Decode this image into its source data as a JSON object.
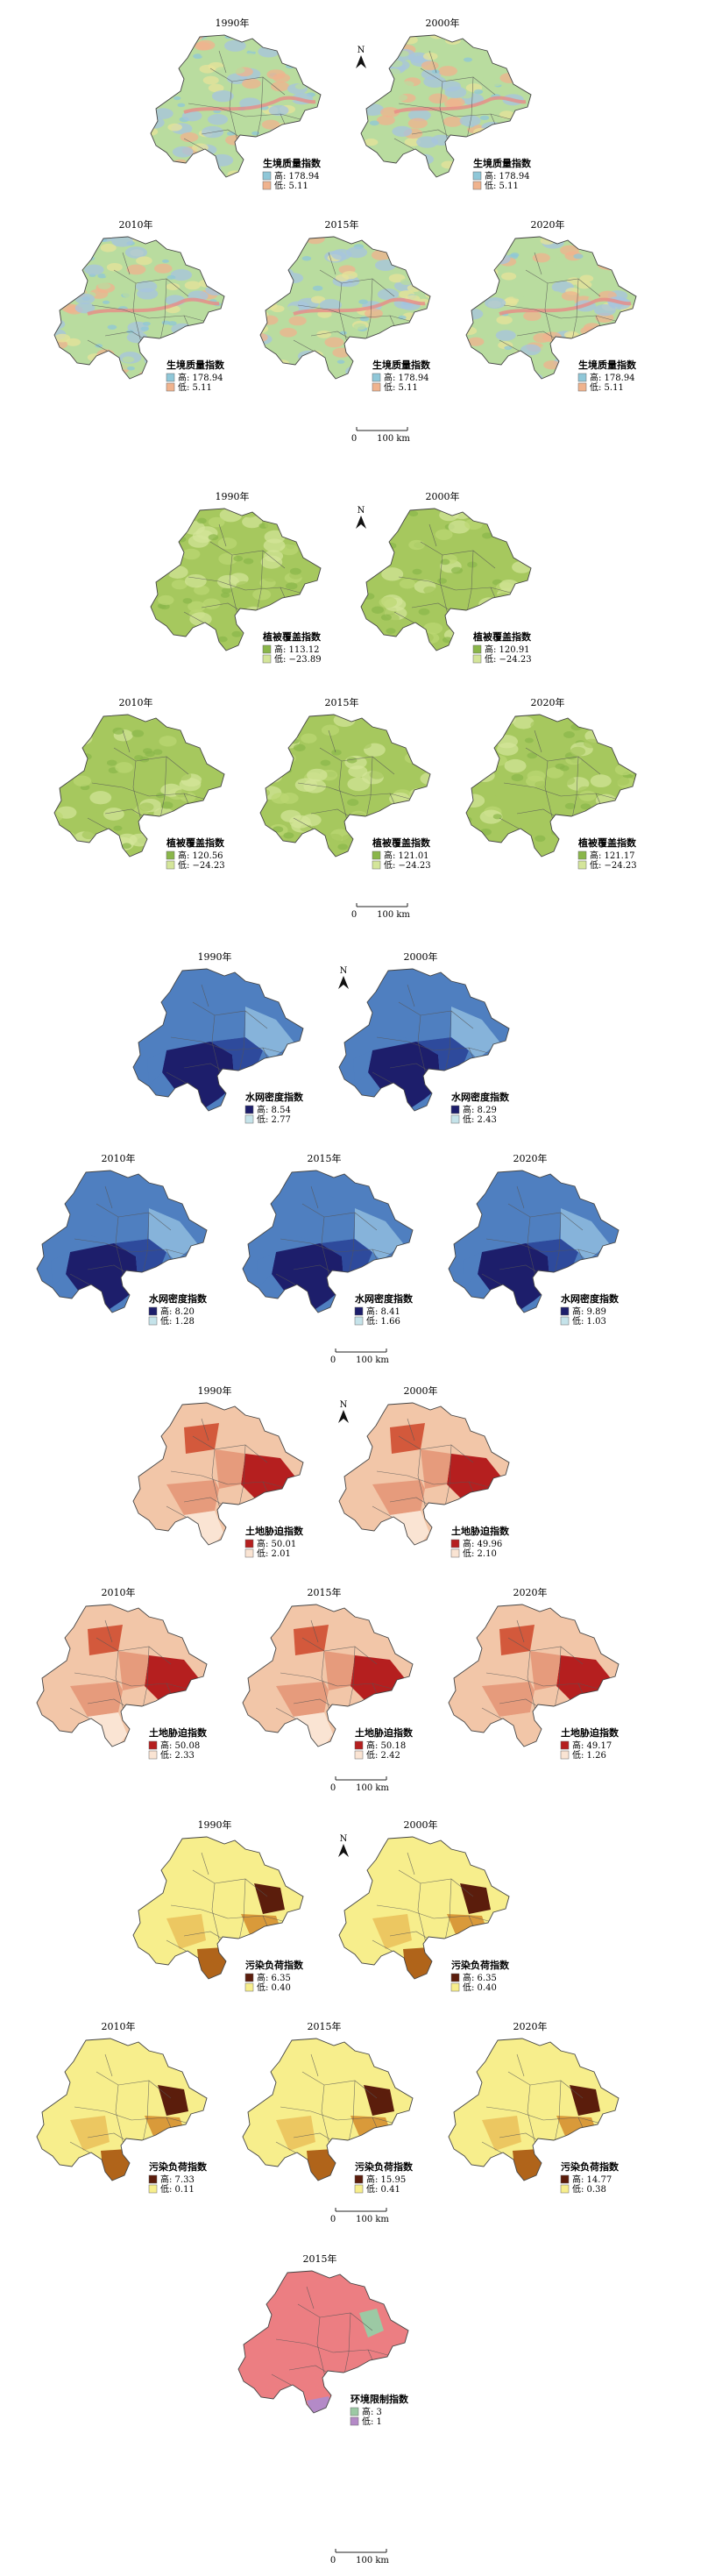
{
  "north_label": "N",
  "scale_labels": {
    "zero": "0",
    "distance": "100 km"
  },
  "legend_prefix": {
    "high": "高: ",
    "low": "低: "
  },
  "sections": [
    {
      "id": "eqi",
      "legend_title": "生境质量指数",
      "maps": [
        {
          "year": "1990年",
          "high": "178.94",
          "low": "5.11"
        },
        {
          "year": "2000年",
          "high": "178.94",
          "low": "5.11"
        },
        {
          "year": "2010年",
          "high": "178.94",
          "low": "5.11"
        },
        {
          "year": "2015年",
          "high": "178.94",
          "low": "5.11"
        },
        {
          "year": "2020年",
          "high": "178.94",
          "low": "5.11"
        }
      ]
    },
    {
      "id": "veg",
      "legend_title": "植被覆盖指数",
      "maps": [
        {
          "year": "1990年",
          "high": "113.12",
          "low": "−23.89"
        },
        {
          "year": "2000年",
          "high": "120.91",
          "low": "−24.23"
        },
        {
          "year": "2010年",
          "high": "120.56",
          "low": "−24.23"
        },
        {
          "year": "2015年",
          "high": "121.01",
          "low": "−24.23"
        },
        {
          "year": "2020年",
          "high": "121.17",
          "low": "−24.23"
        }
      ]
    },
    {
      "id": "water",
      "legend_title": "水网密度指数",
      "maps": [
        {
          "year": "1990年",
          "high": "8.54",
          "low": "2.77"
        },
        {
          "year": "2000年",
          "high": "8.29",
          "low": "2.43"
        },
        {
          "year": "2010年",
          "high": "8.20",
          "low": "1.28"
        },
        {
          "year": "2015年",
          "high": "8.41",
          "low": "1.66"
        },
        {
          "year": "2020年",
          "high": "9.89",
          "low": "1.03"
        }
      ]
    },
    {
      "id": "land",
      "legend_title": "土地胁迫指数",
      "maps": [
        {
          "year": "1990年",
          "high": "50.01",
          "low": "2.01"
        },
        {
          "year": "2000年",
          "high": "49.96",
          "low": "2.10"
        },
        {
          "year": "2010年",
          "high": "50.08",
          "low": "2.33"
        },
        {
          "year": "2015年",
          "high": "50.18",
          "low": "2.42"
        },
        {
          "year": "2020年",
          "high": "49.17",
          "low": "1.26"
        }
      ]
    },
    {
      "id": "pollution",
      "legend_title": "污染负荷指数",
      "maps": [
        {
          "year": "1990年",
          "high": "6.35",
          "low": "0.40"
        },
        {
          "year": "2000年",
          "high": "6.35",
          "low": "0.40"
        },
        {
          "year": "2010年",
          "high": "7.33",
          "low": "0.11"
        },
        {
          "year": "2015年",
          "high": "15.95",
          "low": "0.41"
        },
        {
          "year": "2020年",
          "high": "14.77",
          "low": "0.38"
        }
      ]
    },
    {
      "id": "restrict",
      "legend_title": "环境限制指数",
      "maps": [
        {
          "year": "2015年",
          "high": "3",
          "low": "1"
        }
      ]
    }
  ],
  "colors": {
    "eqi": [
      "#8fc7d8",
      "#b9dc9f",
      "#e7e39a",
      "#f0b38e",
      "#a7c4df"
    ],
    "veg": [
      "#8ab64a",
      "#a6c85e",
      "#bcd774",
      "#d4e59a"
    ],
    "water": [
      "#1d1e6b",
      "#2e4a9c",
      "#4f7fc0",
      "#86b3da",
      "#c5e3ea"
    ],
    "land": [
      "#b51f1f",
      "#d3593c",
      "#e69b7c",
      "#f2c6a8",
      "#fae4d3"
    ],
    "pollution": [
      "#5b1d0c",
      "#b0641a",
      "#d99a3a",
      "#ecc761",
      "#f7ee8c"
    ],
    "restrict": [
      "#ec7e82",
      "#9cc9a4",
      "#b48ac7"
    ]
  }
}
